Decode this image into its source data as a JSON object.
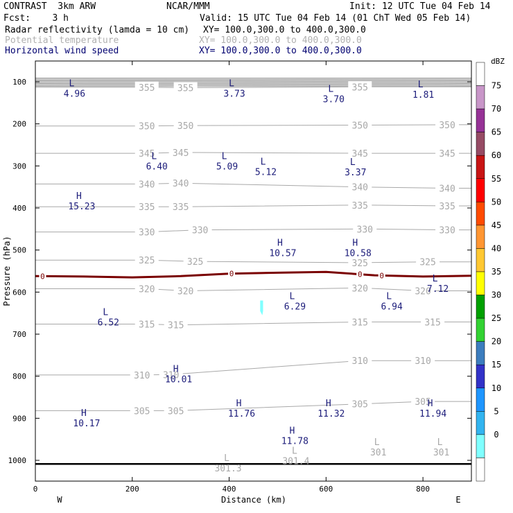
{
  "header": {
    "title_left": "CONTRAST  3km ARW",
    "title_center": "NCAR/MMM",
    "init": "Init: 12 UTC Tue 04 Feb 14",
    "fcst": "Fcst:    3 h",
    "valid": "Valid: 15 UTC Tue 04 Feb 14 (01 ChT Wed 05 Feb 14)",
    "field1": "Radar reflectivity (lamda = 10 cm)",
    "field1_xy": "XY= 100.0,300.0 to 400.0,300.0",
    "field2": "Potential temperature",
    "field2_xy": "XY= 100.0,300.0 to 400.0,300.0",
    "field3": "Horizontal wind speed",
    "field3_xy": "XY= 100.0,300.0 to 400.0,300.0"
  },
  "colors": {
    "theta": "#a8a8a8",
    "wind": "#1c1c7a",
    "freezing": "#7a0000",
    "reflectivity_echo": "#80ffff"
  },
  "chart_data": {
    "type": "line",
    "xlabel": "Distance (km)",
    "ylabel": "Pressure (hPa)",
    "xlim": [
      0,
      900
    ],
    "ylim": [
      1050,
      50
    ],
    "x_ticks": [
      0,
      200,
      400,
      600,
      800
    ],
    "y_ticks": [
      100,
      200,
      300,
      400,
      500,
      600,
      700,
      800,
      900,
      1000
    ],
    "direction_labels": {
      "left": "W",
      "right": "E"
    },
    "theta_contours": [
      {
        "level": "355",
        "p": 113,
        "labels": [
          [
            230,
            113
          ],
          [
            310,
            114
          ],
          [
            670,
            112
          ]
        ]
      },
      {
        "level": "350",
        "p": 205,
        "labels": [
          [
            230,
            205
          ],
          [
            310,
            204
          ],
          [
            670,
            203
          ],
          [
            850,
            202
          ]
        ]
      },
      {
        "level": "345",
        "p": 270,
        "labels": [
          [
            230,
            270
          ],
          [
            300,
            268
          ],
          [
            670,
            270
          ],
          [
            850,
            270
          ]
        ]
      },
      {
        "level": "340",
        "p": 343,
        "labels": [
          [
            230,
            343
          ],
          [
            300,
            341
          ],
          [
            670,
            350
          ],
          [
            850,
            353
          ]
        ]
      },
      {
        "level": "335",
        "p": 397,
        "labels": [
          [
            230,
            397
          ],
          [
            300,
            397
          ],
          [
            670,
            393
          ],
          [
            850,
            395
          ]
        ]
      },
      {
        "level": "330",
        "p": 457,
        "labels": [
          [
            230,
            457
          ],
          [
            340,
            452
          ],
          [
            680,
            450
          ],
          [
            850,
            452
          ]
        ]
      },
      {
        "level": "325",
        "p": 524,
        "labels": [
          [
            230,
            524
          ],
          [
            330,
            527
          ],
          [
            670,
            530
          ],
          [
            810,
            528
          ]
        ]
      },
      {
        "level": "320",
        "p": 592,
        "labels": [
          [
            230,
            592
          ],
          [
            310,
            597
          ],
          [
            670,
            590
          ],
          [
            800,
            597
          ]
        ]
      },
      {
        "level": "315",
        "p": 676,
        "labels": [
          [
            230,
            676
          ],
          [
            290,
            678
          ],
          [
            670,
            671
          ],
          [
            820,
            671
          ]
        ]
      },
      {
        "level": "310",
        "p": 797,
        "labels": [
          [
            220,
            797
          ],
          [
            280,
            796
          ],
          [
            670,
            763
          ],
          [
            800,
            763
          ]
        ]
      },
      {
        "level": "305",
        "p": 882,
        "labels": [
          [
            220,
            882
          ],
          [
            290,
            882
          ],
          [
            670,
            866
          ],
          [
            800,
            860
          ]
        ]
      }
    ],
    "freezing_level": {
      "label": "0",
      "x": [
        0,
        100,
        200,
        300,
        400,
        500,
        600,
        700,
        800,
        900
      ],
      "p": [
        562,
        563,
        565,
        562,
        556,
        554,
        552,
        560,
        563,
        561
      ]
    },
    "wind_extrema": [
      {
        "type": "L",
        "value": "4.96",
        "x": 75,
        "p": 104
      },
      {
        "type": "L",
        "value": "3.73",
        "x": 405,
        "p": 104
      },
      {
        "type": "L",
        "value": "3.70",
        "x": 610,
        "p": 117
      },
      {
        "type": "L",
        "value": "1.81",
        "x": 795,
        "p": 107
      },
      {
        "type": "L",
        "value": "6.40",
        "x": 245,
        "p": 277
      },
      {
        "type": "L",
        "value": "5.09",
        "x": 390,
        "p": 277
      },
      {
        "type": "L",
        "value": "5.12",
        "x": 470,
        "p": 290
      },
      {
        "type": "L",
        "value": "3.37",
        "x": 655,
        "p": 291
      },
      {
        "type": "H",
        "value": "15.23",
        "x": 90,
        "p": 372
      },
      {
        "type": "H",
        "value": "10.57",
        "x": 505,
        "p": 483
      },
      {
        "type": "H",
        "value": "10.58",
        "x": 660,
        "p": 483
      },
      {
        "type": "L",
        "value": "7.12",
        "x": 825,
        "p": 568
      },
      {
        "type": "L",
        "value": "6.29",
        "x": 530,
        "p": 610
      },
      {
        "type": "L",
        "value": "6.94",
        "x": 730,
        "p": 610
      },
      {
        "type": "L",
        "value": "6.52",
        "x": 145,
        "p": 648
      },
      {
        "type": "H",
        "value": "10.01",
        "x": 290,
        "p": 783
      },
      {
        "type": "H",
        "value": "11.76",
        "x": 420,
        "p": 865
      },
      {
        "type": "H",
        "value": "11.32",
        "x": 605,
        "p": 865
      },
      {
        "type": "H",
        "value": "11.94",
        "x": 815,
        "p": 865
      },
      {
        "type": "H",
        "value": "10.17",
        "x": 100,
        "p": 888
      },
      {
        "type": "H",
        "value": "11.78",
        "x": 530,
        "p": 930
      }
    ],
    "theta_extrema": [
      {
        "type": "L",
        "value": "301",
        "x": 705,
        "p": 957
      },
      {
        "type": "L",
        "value": "301",
        "x": 835,
        "p": 957
      },
      {
        "type": "L",
        "value": "301.4",
        "x": 535,
        "p": 978
      },
      {
        "type": "L",
        "value": "301.3",
        "x": 395,
        "p": 995
      }
    ],
    "reflectivity_echo": {
      "dbz": 5,
      "x": [
        464,
        470
      ],
      "p": [
        620,
        655
      ]
    },
    "colorbar": {
      "unit": "dBZ",
      "labels": [
        "75",
        "70",
        "65",
        "60",
        "55",
        "50",
        "45",
        "40",
        "35",
        "30",
        "25",
        "20",
        "15",
        "10",
        "5",
        "0"
      ],
      "colors": [
        "#ffffff",
        "#c896c8",
        "#963296",
        "#964b64",
        "#c81414",
        "#ff0000",
        "#ff4b00",
        "#ff9632",
        "#ffc832",
        "#ffff00",
        "#00a000",
        "#32d232",
        "#3c7dbe",
        "#3232c8",
        "#1e96ff",
        "#32b4f0",
        "#80ffff",
        "#ffffff"
      ]
    }
  }
}
